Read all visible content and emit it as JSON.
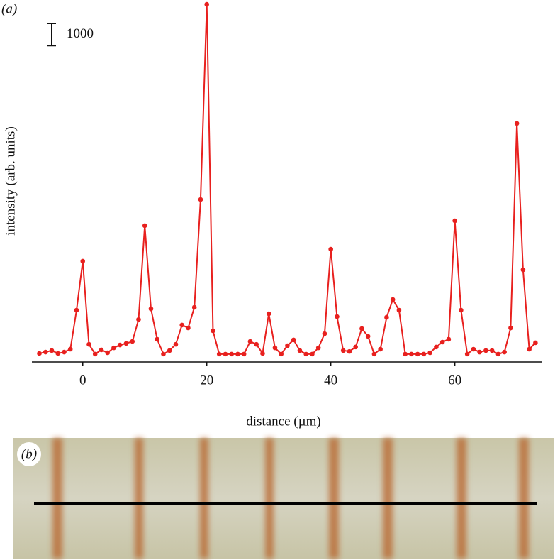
{
  "chart_data": {
    "type": "line",
    "panel_label": "(a)",
    "panel_b_label": "(b)",
    "xlabel": "distance (µm)",
    "ylabel": "intensity (arb. units)",
    "scale_bar": 1000,
    "x": [
      -7,
      -6,
      -5,
      -4,
      -3,
      -2,
      -1,
      0,
      1,
      2,
      3,
      4,
      5,
      6,
      7,
      8,
      9,
      10,
      11,
      12,
      13,
      14,
      15,
      16,
      17,
      18,
      19,
      20,
      21,
      22,
      23,
      24,
      25,
      26,
      27,
      28,
      29,
      30,
      31,
      32,
      33,
      34,
      35,
      36,
      37,
      38,
      39,
      40,
      41,
      42,
      43,
      44,
      45,
      46,
      47,
      48,
      49,
      50,
      51,
      52,
      53,
      54,
      55,
      56,
      57,
      58,
      59,
      60,
      61,
      62,
      63,
      64,
      65,
      66,
      67,
      68,
      69,
      70,
      71,
      72,
      73
    ],
    "series": [
      {
        "color": "#e8201e",
        "values": [
          130,
          190,
          260,
          130,
          190,
          320,
          2080,
          4290,
          540,
          100,
          290,
          160,
          380,
          510,
          580,
          670,
          1660,
          5890,
          2140,
          770,
          100,
          260,
          540,
          1410,
          1280,
          2210,
          7070,
          15870,
          1150,
          100,
          100,
          100,
          100,
          100,
          670,
          540,
          130,
          1920,
          380,
          100,
          480,
          740,
          260,
          100,
          100,
          380,
          1020,
          4830,
          1790,
          260,
          220,
          420,
          1250,
          900,
          100,
          320,
          1760,
          2560,
          2080,
          100,
          100,
          100,
          100,
          160,
          420,
          640,
          770,
          6110,
          2080,
          100,
          320,
          190,
          260,
          260,
          100,
          190,
          1280,
          10500,
          3900,
          320,
          610
        ]
      }
    ],
    "xlim": [
      -8.2,
      74.1
    ],
    "xticks": [
      0,
      20,
      40,
      60
    ],
    "ylim": [
      0,
      16000
    ]
  }
}
